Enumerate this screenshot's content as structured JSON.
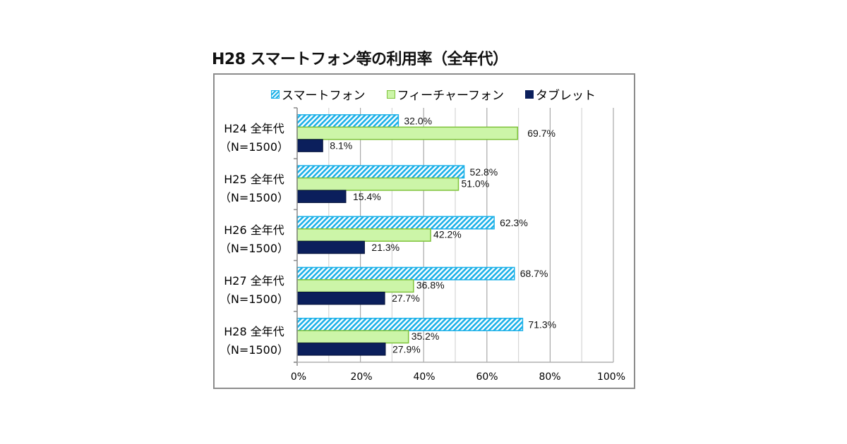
{
  "chart_data": {
    "type": "bar",
    "orientation": "horizontal",
    "title": "H28 スマートフォン等の利用率（全年代）",
    "categories": [
      {
        "line1": "H24 全年代",
        "line2": "（N=1500）"
      },
      {
        "line1": "H25 全年代",
        "line2": "（N=1500）"
      },
      {
        "line1": "H26 全年代",
        "line2": "（N=1500）"
      },
      {
        "line1": "H27 全年代",
        "line2": "（N=1500）"
      },
      {
        "line1": "H28 全年代",
        "line2": "（N=1500）"
      }
    ],
    "series": [
      {
        "name": "スマートフォン",
        "color": "#1ab0e8",
        "pattern": "diagonal-hatch",
        "values": [
          32.0,
          52.8,
          62.3,
          68.7,
          71.3
        ],
        "labels": [
          "32.0%",
          "52.8%",
          "62.3%",
          "68.7%",
          "71.3%"
        ]
      },
      {
        "name": "フィーチャーフォン",
        "color": "#ccf5a8",
        "border": "#7fc33c",
        "values": [
          69.7,
          51.0,
          42.2,
          36.8,
          35.2
        ],
        "labels": [
          "69.7%",
          "51.0%",
          "42.2%",
          "36.8%",
          "35.2%"
        ]
      },
      {
        "name": "タブレット",
        "color": "#0b1f5c",
        "values": [
          8.1,
          15.4,
          21.3,
          27.7,
          27.9
        ],
        "labels": [
          "8.1%",
          "15.4%",
          "21.3%",
          "27.7%",
          "27.9%"
        ]
      }
    ],
    "xlim": [
      0,
      100
    ],
    "xticks": [
      "0%",
      "20%",
      "40%",
      "60%",
      "80%",
      "100%"
    ],
    "grid": true,
    "legend_position": "top"
  }
}
